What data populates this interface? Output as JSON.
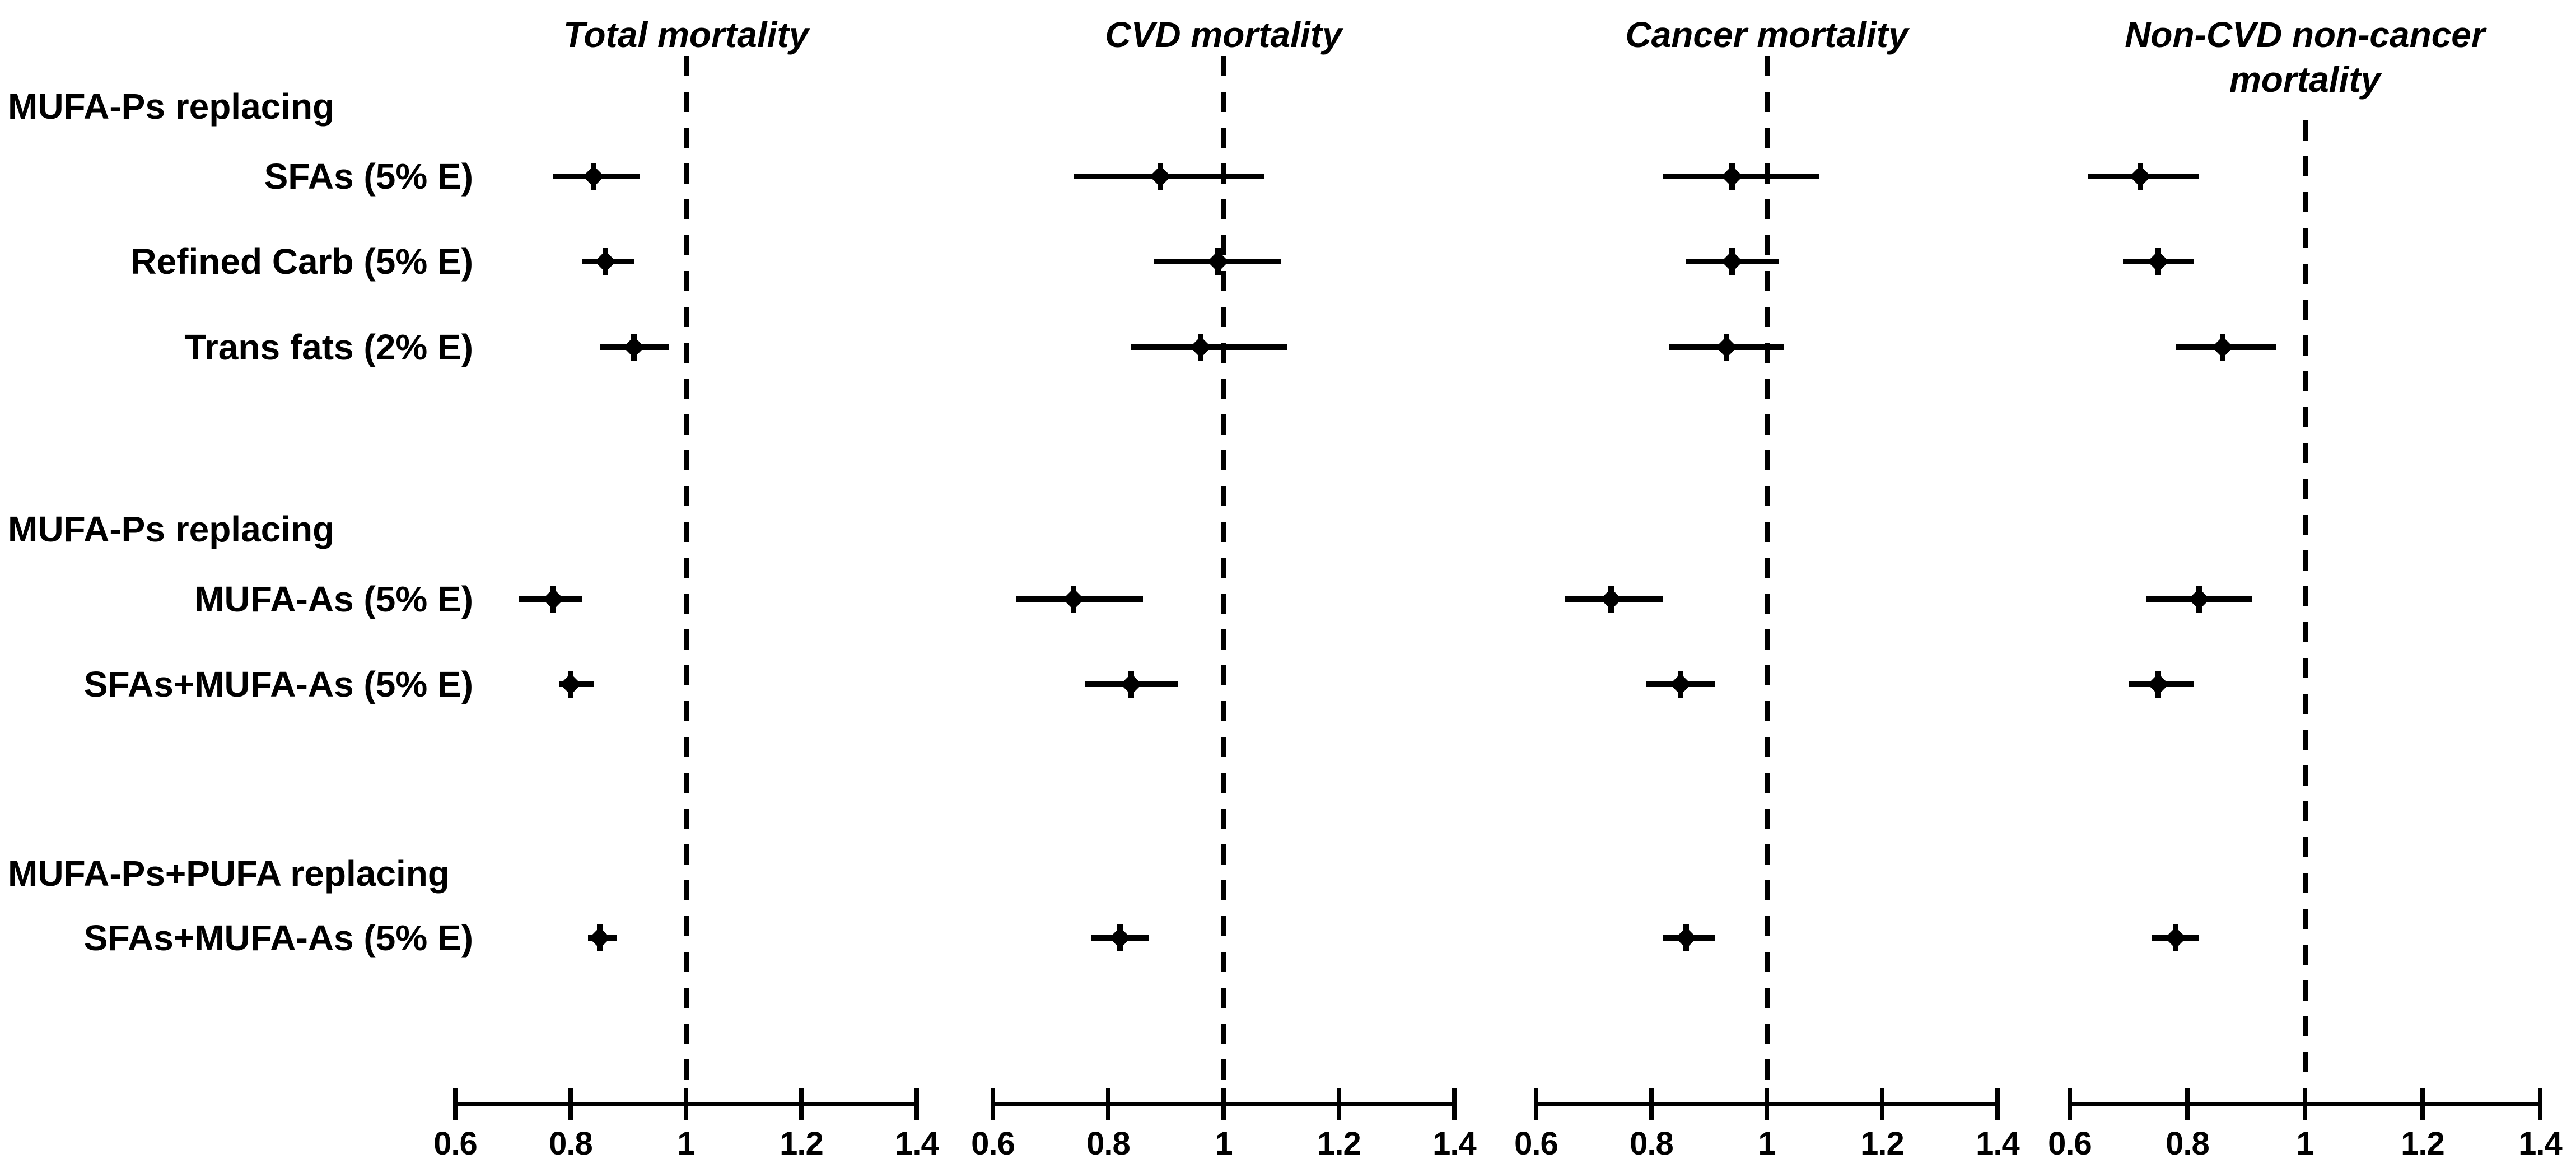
{
  "figure_title": "Forest plot of mortality risk for MUFA-P replacement models",
  "colors": {
    "foreground": "#000000",
    "background": "#ffffff"
  },
  "chart_data": {
    "type": "scatter",
    "variant": "forest-plot",
    "grid": false,
    "legend": false,
    "x_axis": {
      "min": 0.6,
      "max": 1.4,
      "tick_values": [
        0.6,
        0.8,
        1,
        1.2,
        1.4
      ],
      "tick_labels": [
        "0.6",
        "0.8",
        "1",
        "1.2",
        "1.4"
      ],
      "reference_line": 1,
      "scale": "linear"
    },
    "row_groups": [
      {
        "header": "MUFA-Ps replacing",
        "rows": [
          {
            "label": "SFAs (5% E)"
          },
          {
            "label": "Refined Carb (5% E)"
          },
          {
            "label": "Trans fats (2% E)"
          }
        ]
      },
      {
        "header": "MUFA-Ps replacing",
        "rows": [
          {
            "label": "MUFA-As (5% E)"
          },
          {
            "label": "SFAs+MUFA-As (5% E)"
          }
        ]
      },
      {
        "header": "MUFA-Ps+PUFA replacing",
        "rows": [
          {
            "label": "SFAs+MUFA-As (5% E)"
          }
        ]
      }
    ],
    "panels": [
      {
        "title_lines": [
          "Total mortality"
        ],
        "estimates": [
          {
            "hr": 0.84,
            "ci": [
              0.77,
              0.92
            ]
          },
          {
            "hr": 0.86,
            "ci": [
              0.82,
              0.91
            ]
          },
          {
            "hr": 0.91,
            "ci": [
              0.85,
              0.97
            ]
          },
          {
            "hr": 0.77,
            "ci": [
              0.71,
              0.82
            ]
          },
          {
            "hr": 0.8,
            "ci": [
              0.78,
              0.84
            ]
          },
          {
            "hr": 0.85,
            "ci": [
              0.83,
              0.88
            ]
          }
        ]
      },
      {
        "title_lines": [
          "CVD mortality"
        ],
        "estimates": [
          {
            "hr": 0.89,
            "ci": [
              0.74,
              1.07
            ]
          },
          {
            "hr": 0.99,
            "ci": [
              0.88,
              1.1
            ]
          },
          {
            "hr": 0.96,
            "ci": [
              0.84,
              1.11
            ]
          },
          {
            "hr": 0.74,
            "ci": [
              0.64,
              0.86
            ]
          },
          {
            "hr": 0.84,
            "ci": [
              0.76,
              0.92
            ]
          },
          {
            "hr": 0.82,
            "ci": [
              0.77,
              0.87
            ]
          }
        ]
      },
      {
        "title_lines": [
          "Cancer mortality"
        ],
        "estimates": [
          {
            "hr": 0.94,
            "ci": [
              0.82,
              1.09
            ]
          },
          {
            "hr": 0.94,
            "ci": [
              0.86,
              1.02
            ]
          },
          {
            "hr": 0.93,
            "ci": [
              0.83,
              1.03
            ]
          },
          {
            "hr": 0.73,
            "ci": [
              0.65,
              0.82
            ]
          },
          {
            "hr": 0.85,
            "ci": [
              0.79,
              0.91
            ]
          },
          {
            "hr": 0.86,
            "ci": [
              0.82,
              0.91
            ]
          }
        ]
      },
      {
        "title_lines": [
          "Non-CVD non-cancer",
          "mortality"
        ],
        "estimates": [
          {
            "hr": 0.72,
            "ci": [
              0.63,
              0.82
            ]
          },
          {
            "hr": 0.75,
            "ci": [
              0.69,
              0.81
            ]
          },
          {
            "hr": 0.86,
            "ci": [
              0.78,
              0.95
            ]
          },
          {
            "hr": 0.82,
            "ci": [
              0.73,
              0.91
            ]
          },
          {
            "hr": 0.75,
            "ci": [
              0.7,
              0.81
            ]
          },
          {
            "hr": 0.78,
            "ci": [
              0.74,
              0.82
            ]
          }
        ]
      }
    ]
  }
}
